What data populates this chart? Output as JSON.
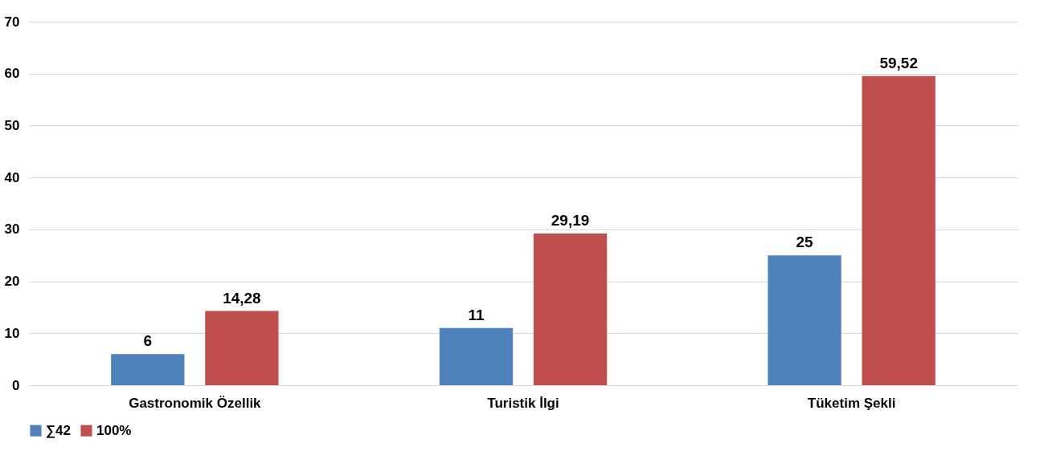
{
  "chart_data": {
    "type": "bar",
    "categories": [
      "Gastronomik Özellik",
      "Turistik İlgi",
      "Tüketim Şekli"
    ],
    "series": [
      {
        "name": "∑42",
        "color": "#4f81bd",
        "values": [
          6,
          11,
          25
        ],
        "value_labels": [
          "6",
          "11",
          "25"
        ]
      },
      {
        "name": "100%",
        "color": "#c0504d",
        "values": [
          14.28,
          29.19,
          59.52
        ],
        "value_labels": [
          "14,28",
          "29,19",
          "59,52"
        ]
      }
    ],
    "ylim": [
      0,
      70
    ],
    "yticks": [
      0,
      10,
      20,
      30,
      40,
      50,
      60,
      70
    ],
    "grid": "y",
    "legend": "bottom"
  }
}
